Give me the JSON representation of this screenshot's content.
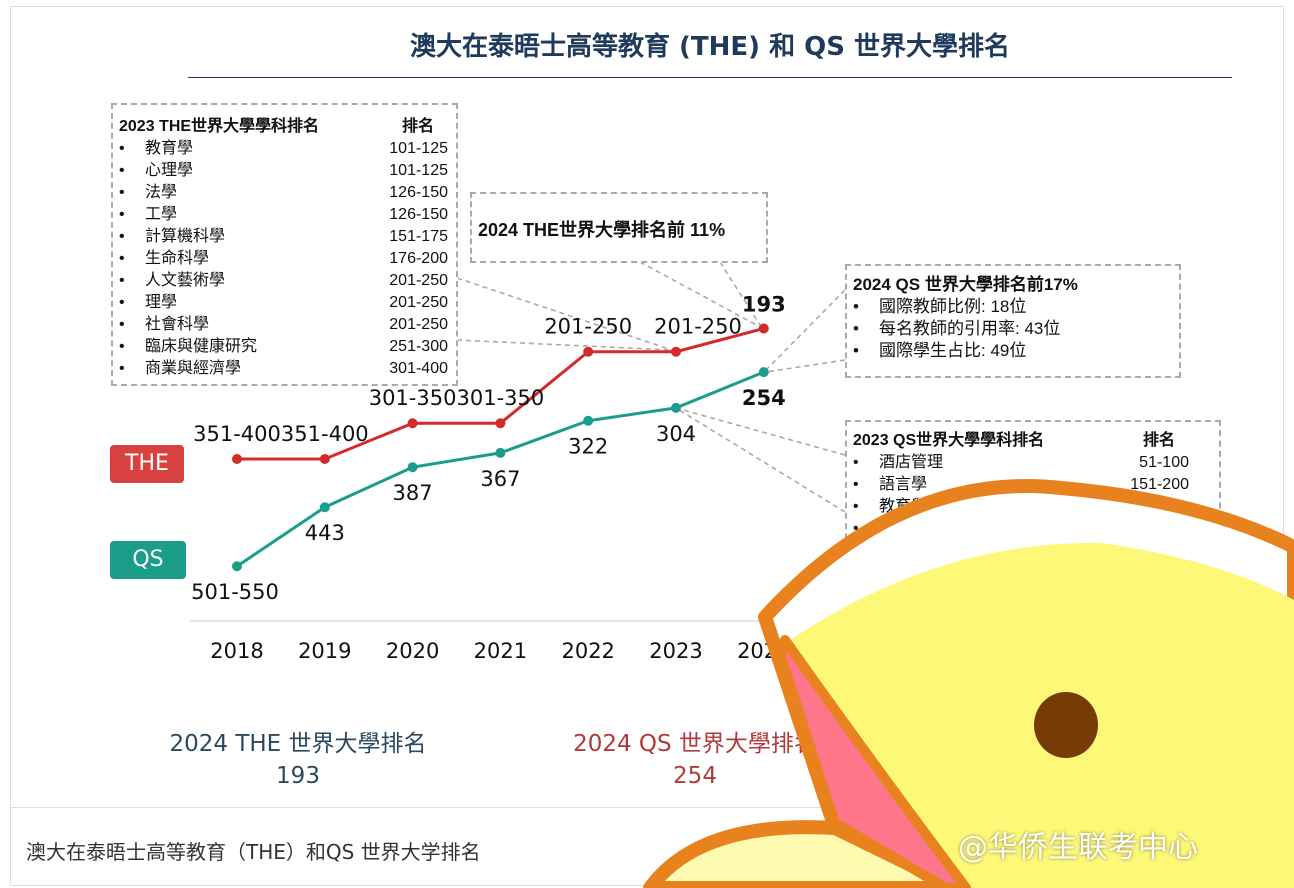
{
  "title": "澳大在泰晤士高等教育 (THE) 和 QS 世界大學排名",
  "caption": "澳大在泰晤士高等教育（THE）和QS 世界大学排名",
  "watermark": "@华侨生联考中心",
  "colors": {
    "the": "#d42a2a",
    "qs": "#1a9e8a",
    "title": "#1f3a5a"
  },
  "the_subjects": {
    "header": "2023 THE世界大學學科排名",
    "rank_header": "排名",
    "items": [
      {
        "name": "教育學",
        "rank": "101-125"
      },
      {
        "name": "心理學",
        "rank": "101-125"
      },
      {
        "name": "法學",
        "rank": "126-150"
      },
      {
        "name": "工學",
        "rank": "126-150"
      },
      {
        "name": "計算機科學",
        "rank": "151-175"
      },
      {
        "name": "生命科學",
        "rank": "176-200"
      },
      {
        "name": "人文藝術學",
        "rank": "201-250"
      },
      {
        "name": "理學",
        "rank": "201-250"
      },
      {
        "name": "社會科學",
        "rank": "201-250"
      },
      {
        "name": "臨床與健康研究",
        "rank": "251-300"
      },
      {
        "name": "商業與經濟學",
        "rank": "301-400"
      }
    ]
  },
  "the_callout": "2024 THE世界大學排名前 11%",
  "qs_callout": {
    "header": "2024 QS 世界大學排名前17%",
    "items": [
      "國際教師比例: 18位",
      "每名教師的引用率: 43位",
      "國際學生占比: 49位"
    ]
  },
  "qs_subjects": {
    "header": "2023 QS世界大學學科排名",
    "rank_header": "排名",
    "items": [
      {
        "name": "酒店管理",
        "rank": "51-100"
      },
      {
        "name": "語言學",
        "rank": "151-200"
      },
      {
        "name": "教育與培訓",
        "rank": ""
      },
      {
        "name": "",
        "rank": ""
      }
    ]
  },
  "bottom": {
    "the_label": "2024 THE 世界大學排名",
    "the_value": "193",
    "qs_label": "2024 QS 世界大學排名",
    "qs_value": "254"
  },
  "chart_data": {
    "type": "line",
    "title": "澳大在泰晤士高等教育 (THE) 和 QS 世界大學排名",
    "categories": [
      "2018",
      "2019",
      "2020",
      "2021",
      "2022",
      "2023",
      "2024"
    ],
    "y_reversed": true,
    "series": [
      {
        "name": "THE",
        "color": "#d42a2a",
        "labels": [
          "351-400",
          "351-400",
          "301-350",
          "301-350",
          "201-250",
          "201-250",
          "193"
        ],
        "values": [
          375.5,
          375.5,
          325.5,
          325.5,
          225.5,
          225.5,
          193
        ]
      },
      {
        "name": "QS",
        "color": "#1a9e8a",
        "labels": [
          "501-550",
          "443",
          "387",
          "367",
          "322",
          "304",
          "254"
        ],
        "values": [
          525.5,
          443,
          387,
          367,
          322,
          304,
          254
        ]
      }
    ]
  }
}
